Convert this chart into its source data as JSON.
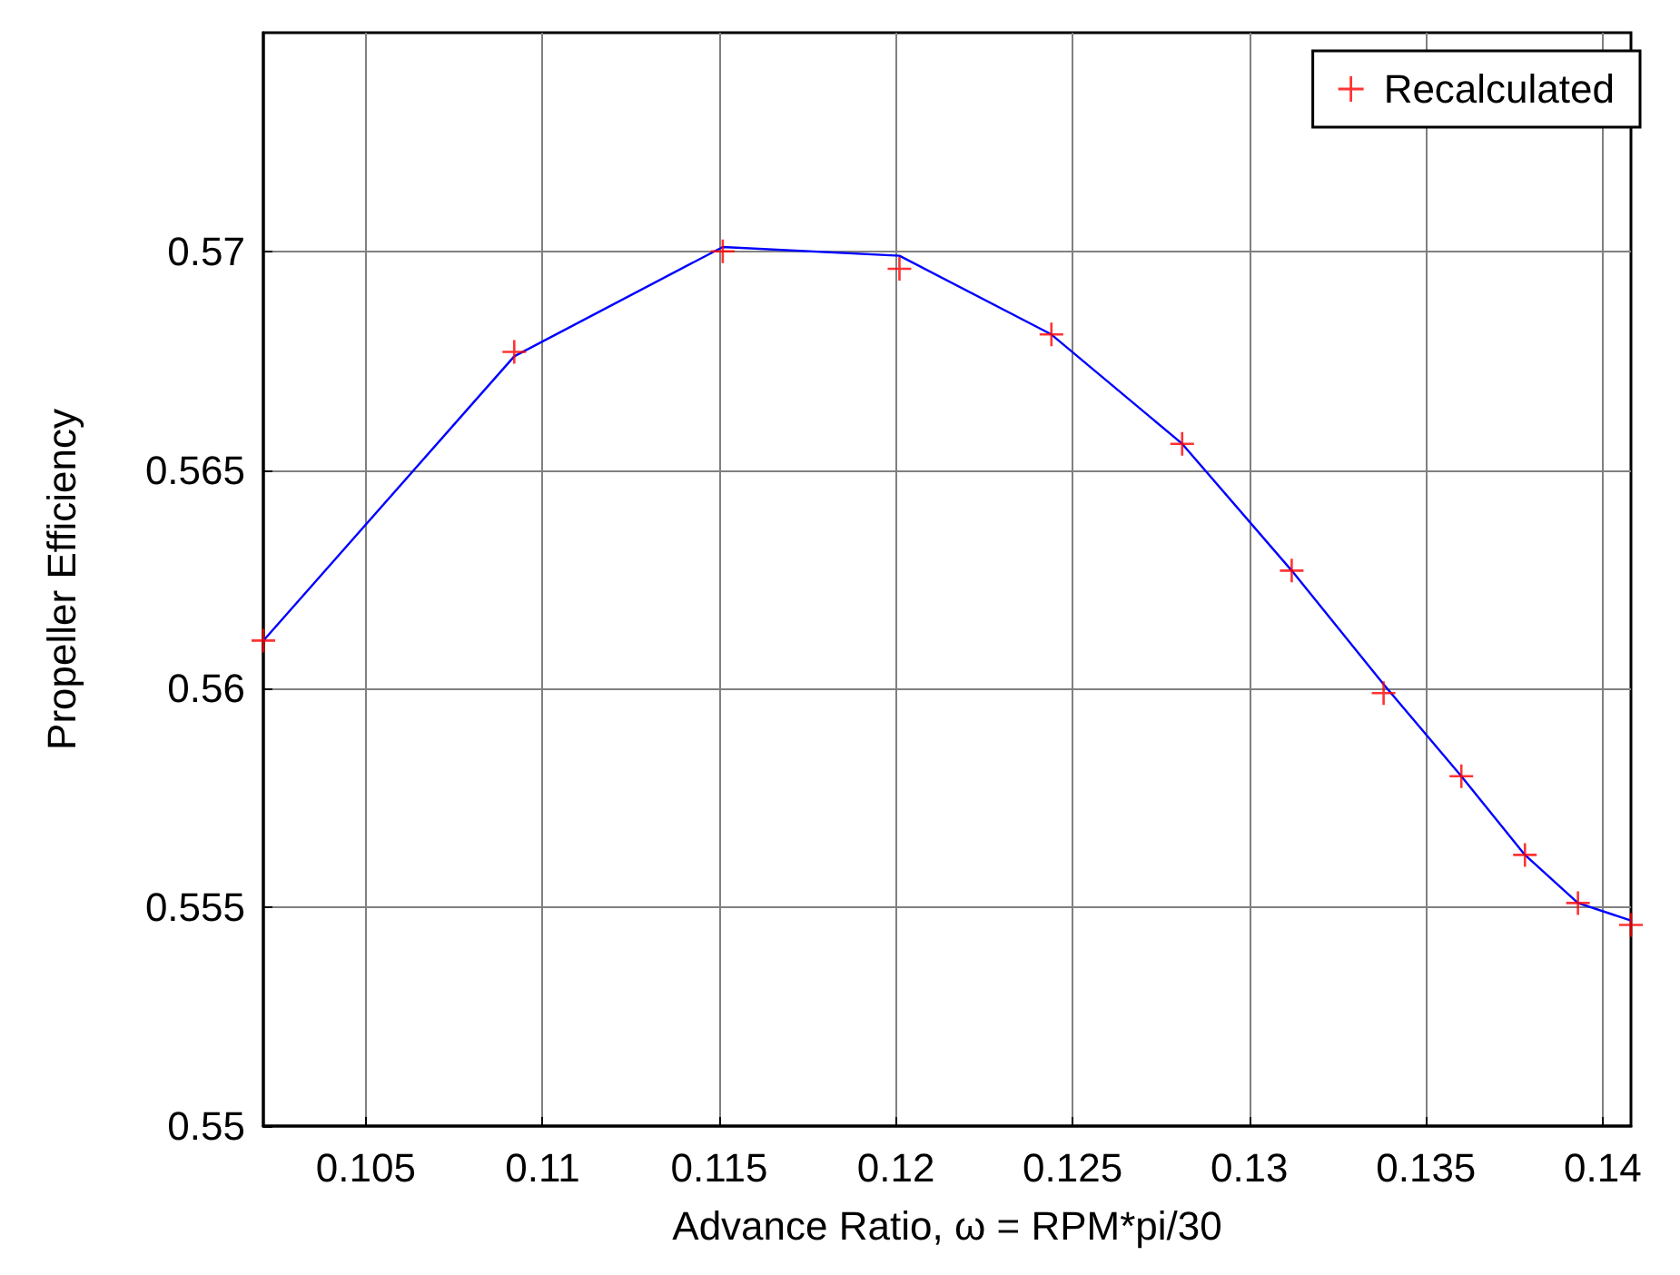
{
  "chart_data": {
    "type": "scatter",
    "xlabel": "Advance Ratio, ω = RPM*pi/30",
    "ylabel": "Propeller Efficiency",
    "x": [
      0.1021,
      0.1092,
      0.1151,
      0.1201,
      0.1244,
      0.1281,
      0.1312,
      0.1338,
      0.136,
      0.1378,
      0.1393,
      0.1408
    ],
    "series": [
      {
        "name": "Recalculated",
        "marker": "cross",
        "color": "#ff0000",
        "values": [
          0.5611,
          0.5677,
          0.57,
          0.5696,
          0.5681,
          0.5656,
          0.5627,
          0.5599,
          0.558,
          0.5562,
          0.5551,
          0.5546
        ]
      },
      {
        "type": "line",
        "marker": "none",
        "line_style": "solid",
        "color": "#0000ff",
        "values": [
          0.5611,
          0.5676,
          0.5701,
          0.5699,
          0.5681,
          0.5656,
          0.5627,
          0.5601,
          0.558,
          0.5562,
          0.5551,
          0.5547
        ]
      }
    ],
    "xlim": [
      0.1021,
      0.1408
    ],
    "xticks": [
      0.105,
      0.11,
      0.115,
      0.12,
      0.125,
      0.13,
      0.135,
      0.14
    ],
    "ylim": [
      0.55,
      0.575
    ],
    "yticks": [
      0.55,
      0.555,
      0.56,
      0.565,
      0.57
    ],
    "grid": true,
    "legend": "top right"
  }
}
